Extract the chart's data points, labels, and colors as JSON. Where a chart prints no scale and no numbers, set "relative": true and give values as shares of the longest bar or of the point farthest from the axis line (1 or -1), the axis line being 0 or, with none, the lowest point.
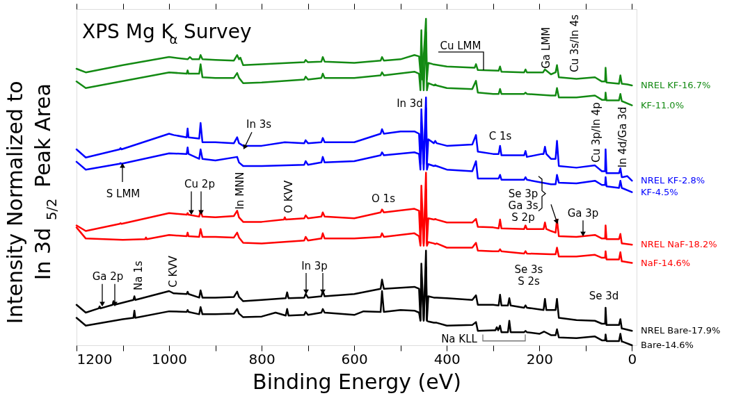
{
  "chart_data": {
    "type": "line",
    "title": "XPS Mg K$_{α}$ Survey",
    "xlabel": "Binding Energy (eV)",
    "ylabel": "Intensity Normalized to In 3d$_{5/2}$ Peak Area",
    "relative": true,
    "xlim": [
      1200,
      -10
    ],
    "xticks": [
      1200,
      {
        "value": 1100,
        "label": null
      },
      1000,
      {
        "value": 900,
        "label": null
      },
      800,
      {
        "value": 700,
        "label": null
      },
      600,
      {
        "value": 500,
        "label": null
      },
      400,
      {
        "value": 300,
        "label": null
      },
      200,
      {
        "value": 100,
        "label": null
      },
      0
    ],
    "series": [
      {
        "name": "NREL KF-16.7%",
        "color": "#138a13",
        "x": [
          1200,
          1180,
          1100,
          1000,
          960,
          955,
          950,
          935,
          932,
          928,
          900,
          860,
          853,
          849,
          846,
          840,
          800,
          740,
          708,
          705,
          700,
          671,
          668,
          664,
          600,
          543,
          540,
          536,
          500,
          470,
          460,
          457,
          455,
          453,
          445,
          443,
          440,
          430,
          400,
          340,
          337,
          333,
          288,
          285,
          282,
          233,
          230,
          227,
          192,
          188,
          175,
          165,
          162,
          158,
          120,
          80,
          65,
          58,
          57,
          55,
          28,
          25,
          22,
          10,
          0
        ],
        "values": [
          0.847,
          0.836,
          0.858,
          0.883,
          0.876,
          0.883,
          0.876,
          0.876,
          0.889,
          0.876,
          0.874,
          0.872,
          0.889,
          0.876,
          0.881,
          0.858,
          0.861,
          0.865,
          0.867,
          0.874,
          0.867,
          0.869,
          0.883,
          0.869,
          0.865,
          0.872,
          0.883,
          0.872,
          0.876,
          0.889,
          0.885,
          0.836,
          0.965,
          0.814,
          1.0,
          0.814,
          0.865,
          0.861,
          0.854,
          0.85,
          0.861,
          0.843,
          0.841,
          0.854,
          0.838,
          0.836,
          0.845,
          0.836,
          0.836,
          0.845,
          0.83,
          0.836,
          0.858,
          0.821,
          0.816,
          0.821,
          0.808,
          0.808,
          0.85,
          0.805,
          0.801,
          0.827,
          0.801,
          0.799,
          0.796
        ]
      },
      {
        "name": "KF-11.0%",
        "color": "#138a13",
        "x": [
          1200,
          1180,
          1000,
          962,
          960,
          958,
          935,
          932,
          928,
          900,
          860,
          853,
          849,
          840,
          800,
          708,
          705,
          700,
          671,
          668,
          664,
          600,
          543,
          540,
          536,
          470,
          460,
          457,
          455,
          450,
          445,
          443,
          440,
          428,
          425,
          422,
          400,
          345,
          337,
          333,
          300,
          288,
          285,
          282,
          233,
          230,
          227,
          175,
          165,
          162,
          158,
          120,
          80,
          65,
          58,
          57,
          55,
          28,
          25,
          22,
          0
        ],
        "values": [
          0.808,
          0.788,
          0.836,
          0.832,
          0.842,
          0.832,
          0.832,
          0.861,
          0.821,
          0.819,
          0.819,
          0.834,
          0.819,
          0.803,
          0.805,
          0.814,
          0.823,
          0.814,
          0.819,
          0.832,
          0.819,
          0.819,
          0.827,
          0.836,
          0.827,
          0.838,
          0.832,
          0.781,
          0.925,
          0.781,
          0.958,
          0.781,
          0.803,
          0.796,
          0.799,
          0.796,
          0.788,
          0.785,
          0.81,
          0.774,
          0.77,
          0.77,
          0.785,
          0.77,
          0.77,
          0.774,
          0.77,
          0.765,
          0.765,
          0.788,
          0.759,
          0.759,
          0.765,
          0.752,
          0.752,
          0.774,
          0.75,
          0.75,
          0.77,
          0.748,
          0.735
        ]
      },
      {
        "name": "NREL KF-2.8%",
        "color": "#0000ff",
        "x": [
          1200,
          1180,
          1107,
          1105,
          1103,
          1000,
          990,
          962,
          960,
          958,
          935,
          932,
          928,
          900,
          860,
          853,
          849,
          840,
          800,
          750,
          708,
          705,
          700,
          671,
          668,
          664,
          600,
          543,
          540,
          536,
          500,
          470,
          460,
          457,
          455,
          450,
          445,
          443,
          440,
          428,
          425,
          422,
          400,
          345,
          337,
          333,
          300,
          288,
          285,
          282,
          250,
          233,
          230,
          227,
          195,
          191,
          188,
          185,
          175,
          165,
          162,
          158,
          120,
          80,
          65,
          58,
          57,
          55,
          52,
          28,
          25,
          22,
          20,
          10,
          0
        ],
        "values": [
          0.6,
          0.575,
          0.6,
          0.604,
          0.6,
          0.648,
          0.644,
          0.637,
          0.664,
          0.637,
          0.633,
          0.681,
          0.622,
          0.622,
          0.619,
          0.637,
          0.619,
          0.611,
          0.611,
          0.622,
          0.619,
          0.628,
          0.619,
          0.622,
          0.635,
          0.622,
          0.622,
          0.648,
          0.662,
          0.648,
          0.655,
          0.655,
          0.648,
          0.555,
          0.723,
          0.555,
          0.759,
          0.555,
          0.631,
          0.619,
          0.626,
          0.619,
          0.611,
          0.615,
          0.644,
          0.593,
          0.586,
          0.586,
          0.611,
          0.582,
          0.582,
          0.582,
          0.595,
          0.577,
          0.586,
          0.586,
          0.608,
          0.586,
          0.571,
          0.571,
          0.626,
          0.549,
          0.544,
          0.551,
          0.533,
          0.533,
          0.6,
          0.527,
          0.527,
          0.527,
          0.542,
          0.515,
          0.515,
          0.518,
          0.504
        ]
      },
      {
        "name": "KF-4.5%",
        "color": "#0000ff",
        "x": [
          1200,
          1180,
          1107,
          1105,
          1103,
          1000,
          962,
          960,
          958,
          935,
          932,
          928,
          900,
          853,
          849,
          840,
          800,
          708,
          705,
          700,
          671,
          668,
          664,
          600,
          543,
          540,
          536,
          470,
          460,
          457,
          455,
          450,
          445,
          443,
          440,
          428,
          425,
          422,
          400,
          345,
          337,
          333,
          300,
          288,
          285,
          282,
          233,
          230,
          227,
          175,
          165,
          162,
          158,
          120,
          80,
          65,
          58,
          57,
          55,
          28,
          25,
          22,
          0
        ],
        "values": [
          0.562,
          0.538,
          0.556,
          0.558,
          0.556,
          0.588,
          0.586,
          0.606,
          0.586,
          0.571,
          0.6,
          0.571,
          0.566,
          0.577,
          0.56,
          0.549,
          0.549,
          0.553,
          0.564,
          0.553,
          0.56,
          0.577,
          0.56,
          0.564,
          0.582,
          0.591,
          0.582,
          0.591,
          0.586,
          0.538,
          0.681,
          0.538,
          0.726,
          0.538,
          0.555,
          0.549,
          0.551,
          0.549,
          0.538,
          0.533,
          0.564,
          0.511,
          0.511,
          0.511,
          0.522,
          0.507,
          0.507,
          0.515,
          0.507,
          0.493,
          0.493,
          0.522,
          0.498,
          0.496,
          0.504,
          0.491,
          0.491,
          0.515,
          0.487,
          0.482,
          0.504,
          0.482,
          0.469
        ]
      },
      {
        "name": "NREL NaF-18.2%",
        "color": "#ff0000",
        "x": [
          1200,
          1180,
          1107,
          1105,
          1103,
          1000,
          962,
          960,
          958,
          935,
          932,
          928,
          900,
          860,
          853,
          849,
          840,
          800,
          752,
          750,
          748,
          708,
          705,
          700,
          671,
          668,
          664,
          600,
          543,
          540,
          536,
          470,
          460,
          457,
          455,
          450,
          445,
          443,
          440,
          428,
          425,
          422,
          400,
          345,
          337,
          333,
          300,
          288,
          285,
          282,
          233,
          230,
          227,
          191,
          188,
          185,
          175,
          165,
          162,
          158,
          120,
          80,
          65,
          58,
          57,
          55,
          28,
          25,
          22,
          20,
          0
        ],
        "values": [
          0.367,
          0.35,
          0.372,
          0.374,
          0.372,
          0.405,
          0.4,
          0.405,
          0.4,
          0.394,
          0.412,
          0.394,
          0.392,
          0.396,
          0.412,
          0.392,
          0.378,
          0.378,
          0.385,
          0.392,
          0.385,
          0.389,
          0.398,
          0.389,
          0.394,
          0.407,
          0.394,
          0.389,
          0.407,
          0.416,
          0.407,
          0.418,
          0.412,
          0.312,
          0.489,
          0.312,
          0.529,
          0.312,
          0.389,
          0.385,
          0.387,
          0.385,
          0.376,
          0.376,
          0.387,
          0.363,
          0.361,
          0.358,
          0.385,
          0.358,
          0.356,
          0.367,
          0.356,
          0.356,
          0.376,
          0.356,
          0.35,
          0.345,
          0.385,
          0.334,
          0.332,
          0.338,
          0.327,
          0.327,
          0.367,
          0.325,
          0.325,
          0.341,
          0.312,
          0.312,
          0.308
        ]
      },
      {
        "name": "NaF-14.6%",
        "color": "#ff0000",
        "x": [
          1200,
          1180,
          1100,
          1052,
          1050,
          1048,
          1000,
          962,
          960,
          958,
          935,
          932,
          928,
          900,
          860,
          853,
          849,
          840,
          800,
          708,
          705,
          700,
          671,
          668,
          664,
          600,
          543,
          540,
          536,
          470,
          460,
          457,
          455,
          450,
          445,
          443,
          440,
          428,
          425,
          422,
          400,
          345,
          337,
          333,
          300,
          288,
          285,
          282,
          233,
          230,
          227,
          175,
          165,
          162,
          158,
          120,
          80,
          65,
          58,
          57,
          55,
          28,
          25,
          22,
          20,
          0
        ],
        "values": [
          0.361,
          0.327,
          0.323,
          0.325,
          0.33,
          0.325,
          0.338,
          0.334,
          0.345,
          0.334,
          0.332,
          0.356,
          0.332,
          0.332,
          0.33,
          0.345,
          0.33,
          0.314,
          0.312,
          0.321,
          0.332,
          0.321,
          0.327,
          0.343,
          0.327,
          0.327,
          0.332,
          0.343,
          0.332,
          0.343,
          0.334,
          0.305,
          0.438,
          0.305,
          0.478,
          0.305,
          0.316,
          0.312,
          0.31,
          0.312,
          0.299,
          0.299,
          0.314,
          0.29,
          0.288,
          0.288,
          0.294,
          0.288,
          0.281,
          0.288,
          0.281,
          0.279,
          0.279,
          0.299,
          0.272,
          0.272,
          0.277,
          0.268,
          0.268,
          0.288,
          0.263,
          0.263,
          0.285,
          0.257,
          0.257,
          0.252
        ]
      },
      {
        "name": "NREL Bare-17.9%",
        "color": "#000000",
        "x": [
          1200,
          1180,
          1152,
          1150,
          1148,
          1122,
          1120,
          1118,
          1077,
          1075,
          1073,
          1000,
          990,
          962,
          960,
          958,
          935,
          932,
          928,
          900,
          860,
          853,
          849,
          840,
          800,
          748,
          745,
          742,
          708,
          705,
          700,
          671,
          668,
          664,
          600,
          543,
          540,
          536,
          470,
          460,
          457,
          455,
          450,
          445,
          443,
          440,
          428,
          425,
          422,
          400,
          345,
          337,
          333,
          300,
          288,
          285,
          282,
          268,
          265,
          262,
          233,
          230,
          227,
          191,
          188,
          185,
          175,
          165,
          162,
          158,
          120,
          80,
          65,
          58,
          57,
          55,
          28,
          25,
          22,
          20,
          0
        ],
        "values": [
          0.124,
          0.1,
          0.113,
          0.119,
          0.113,
          0.124,
          0.135,
          0.124,
          0.139,
          0.15,
          0.139,
          0.166,
          0.159,
          0.157,
          0.164,
          0.157,
          0.146,
          0.168,
          0.146,
          0.146,
          0.148,
          0.164,
          0.148,
          0.135,
          0.139,
          0.144,
          0.162,
          0.144,
          0.146,
          0.157,
          0.146,
          0.15,
          0.166,
          0.15,
          0.157,
          0.173,
          0.201,
          0.173,
          0.179,
          0.173,
          0.077,
          0.25,
          0.077,
          0.29,
          0.077,
          0.15,
          0.146,
          0.146,
          0.146,
          0.144,
          0.139,
          0.153,
          0.124,
          0.124,
          0.122,
          0.155,
          0.122,
          0.122,
          0.144,
          0.122,
          0.115,
          0.122,
          0.115,
          0.108,
          0.142,
          0.108,
          0.108,
          0.108,
          0.142,
          0.084,
          0.077,
          0.075,
          0.066,
          0.066,
          0.115,
          0.062,
          0.062,
          0.08,
          0.051,
          0.051,
          0.044
        ]
      },
      {
        "name": "Bare-14.6%",
        "color": "#000000",
        "x": [
          1200,
          1180,
          1100,
          1077,
          1075,
          1073,
          1000,
          962,
          960,
          958,
          935,
          932,
          928,
          900,
          860,
          853,
          849,
          840,
          800,
          770,
          748,
          745,
          742,
          708,
          705,
          700,
          671,
          668,
          664,
          600,
          580,
          543,
          540,
          536,
          500,
          470,
          460,
          457,
          455,
          450,
          445,
          443,
          440,
          428,
          425,
          422,
          400,
          345,
          337,
          333,
          300,
          295,
          292,
          289,
          285,
          282,
          268,
          265,
          262,
          233,
          230,
          227,
          200,
          190,
          175,
          165,
          162,
          158,
          120,
          80,
          65,
          58,
          57,
          55,
          28,
          25,
          22,
          20,
          0
        ],
        "values": [
          0.084,
          0.06,
          0.08,
          0.084,
          0.106,
          0.084,
          0.104,
          0.102,
          0.108,
          0.102,
          0.095,
          0.117,
          0.095,
          0.095,
          0.097,
          0.111,
          0.097,
          0.086,
          0.088,
          0.1,
          0.091,
          0.111,
          0.091,
          0.093,
          0.102,
          0.093,
          0.1,
          0.111,
          0.1,
          0.093,
          0.104,
          0.102,
          0.166,
          0.102,
          0.108,
          0.106,
          0.1,
          0.075,
          0.217,
          0.075,
          0.239,
          0.075,
          0.073,
          0.069,
          0.069,
          0.069,
          0.06,
          0.062,
          0.071,
          0.044,
          0.046,
          0.046,
          0.055,
          0.046,
          0.06,
          0.04,
          0.04,
          0.075,
          0.04,
          0.04,
          0.044,
          0.04,
          0.035,
          0.042,
          0.031,
          0.031,
          0.049,
          0.024,
          0.022,
          0.027,
          0.015,
          0.015,
          0.033,
          0.013,
          0.013,
          0.035,
          0.011,
          0.011,
          0.0
        ]
      }
    ],
    "annotations": [
      "Cu LMM",
      "Ga LMM",
      "Cu 3s/In 4s",
      "In 3d",
      "In 3s",
      "C 1s",
      "Cu 3p/In 4p",
      "In 4d/Ga 3d",
      "S LMM",
      "Cu 2p",
      "In MNN",
      "O KVV",
      "O 1s",
      "Se 3p\nGa 3s\nS 2p",
      "Ga 3p",
      "Se 3s\nS 2s",
      "Ga 2p",
      "Na 1s",
      "C KVV",
      "In 3p",
      "Se 3d",
      "Na KLL"
    ]
  }
}
